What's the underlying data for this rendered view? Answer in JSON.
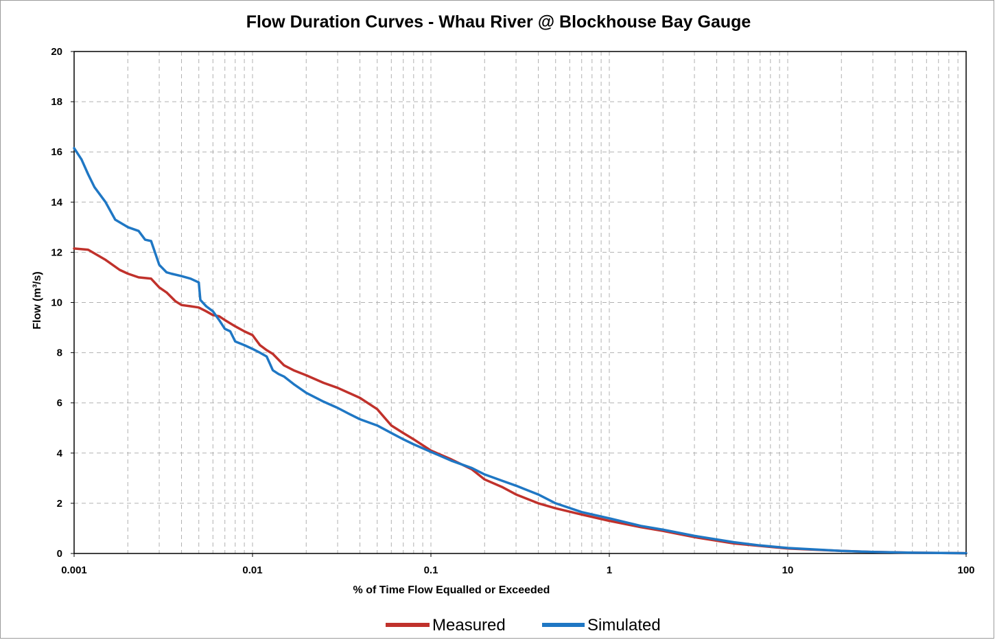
{
  "chart_data": {
    "type": "line",
    "title": "Flow Duration Curves - Whau River @ Blockhouse Bay Gauge",
    "xlabel": "% of Time Flow Equalled or Exceeded",
    "ylabel": "Flow (m³/s)",
    "x_scale": "log",
    "xlim": [
      0.001,
      100
    ],
    "ylim": [
      0,
      20
    ],
    "x_ticks": [
      0.001,
      0.01,
      0.1,
      1,
      10,
      100
    ],
    "x_tick_labels": [
      "0.001",
      "0.01",
      "0.1",
      "1",
      "10",
      "100"
    ],
    "y_ticks": [
      0,
      2,
      4,
      6,
      8,
      10,
      12,
      14,
      16,
      18,
      20
    ],
    "y_tick_labels": [
      "0",
      "2",
      "4",
      "6",
      "8",
      "10",
      "12",
      "14",
      "16",
      "18",
      "20"
    ],
    "grid": true,
    "legend_position": "bottom-center",
    "series": [
      {
        "name": "Measured",
        "color": "#c0312b",
        "x": [
          0.001,
          0.0012,
          0.0015,
          0.0018,
          0.002,
          0.0023,
          0.0027,
          0.003,
          0.0033,
          0.0037,
          0.004,
          0.0045,
          0.005,
          0.0055,
          0.006,
          0.0065,
          0.007,
          0.008,
          0.009,
          0.01,
          0.011,
          0.012,
          0.013,
          0.015,
          0.017,
          0.02,
          0.025,
          0.03,
          0.04,
          0.05,
          0.06,
          0.07,
          0.08,
          0.1,
          0.13,
          0.17,
          0.2,
          0.25,
          0.3,
          0.4,
          0.5,
          0.7,
          1,
          1.5,
          2,
          3,
          5,
          7,
          10,
          20,
          30,
          50,
          100
        ],
        "values": [
          12.15,
          12.1,
          11.7,
          11.3,
          11.15,
          11.0,
          10.95,
          10.6,
          10.4,
          10.05,
          9.9,
          9.85,
          9.8,
          9.65,
          9.5,
          9.45,
          9.3,
          9.05,
          8.85,
          8.7,
          8.3,
          8.1,
          7.95,
          7.5,
          7.3,
          7.1,
          6.8,
          6.6,
          6.2,
          5.75,
          5.1,
          4.8,
          4.55,
          4.1,
          3.75,
          3.35,
          2.95,
          2.65,
          2.35,
          2.0,
          1.8,
          1.55,
          1.3,
          1.05,
          0.9,
          0.65,
          0.4,
          0.3,
          0.2,
          0.1,
          0.06,
          0.03,
          0.01
        ]
      },
      {
        "name": "Simulated",
        "color": "#1f77c4",
        "x": [
          0.001,
          0.0011,
          0.0012,
          0.0013,
          0.0015,
          0.0017,
          0.002,
          0.0023,
          0.0025,
          0.0027,
          0.003,
          0.0033,
          0.0035,
          0.004,
          0.0045,
          0.005,
          0.0051,
          0.0055,
          0.006,
          0.0065,
          0.007,
          0.0075,
          0.008,
          0.009,
          0.01,
          0.011,
          0.012,
          0.013,
          0.014,
          0.015,
          0.017,
          0.02,
          0.025,
          0.03,
          0.035,
          0.04,
          0.05,
          0.06,
          0.07,
          0.08,
          0.1,
          0.13,
          0.17,
          0.2,
          0.25,
          0.3,
          0.4,
          0.5,
          0.7,
          1,
          1.5,
          2,
          3,
          5,
          7,
          10,
          20,
          30,
          50,
          100
        ],
        "values": [
          16.15,
          15.7,
          15.1,
          14.6,
          14.0,
          13.3,
          13.0,
          12.85,
          12.5,
          12.45,
          11.5,
          11.2,
          11.15,
          11.05,
          10.95,
          10.8,
          10.1,
          9.85,
          9.65,
          9.3,
          8.95,
          8.85,
          8.45,
          8.3,
          8.15,
          8.0,
          7.85,
          7.3,
          7.15,
          7.05,
          6.75,
          6.4,
          6.05,
          5.8,
          5.55,
          5.35,
          5.1,
          4.8,
          4.55,
          4.35,
          4.05,
          3.7,
          3.4,
          3.15,
          2.9,
          2.7,
          2.35,
          2.0,
          1.65,
          1.4,
          1.1,
          0.95,
          0.7,
          0.45,
          0.32,
          0.22,
          0.1,
          0.06,
          0.03,
          0.01
        ]
      }
    ]
  }
}
